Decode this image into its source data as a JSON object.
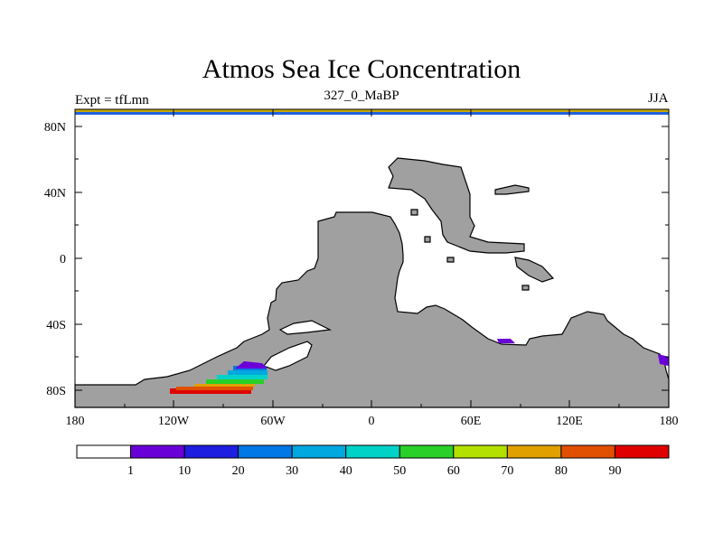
{
  "title": "Atmos Sea Ice Concentration",
  "subtitle": "327_0_MaBP",
  "experiment": "Expt = tfLmn",
  "season": "JJA",
  "map": {
    "projection": "cylindrical equidistant",
    "lon_range": [
      -180,
      180
    ],
    "lat_range": [
      -90,
      90
    ],
    "land_color": "#a0a0a0",
    "ocean_color": "#ffffff",
    "lat_labels": [
      "80N",
      "40N",
      "0",
      "40S",
      "80S"
    ],
    "lat_values": [
      80,
      40,
      0,
      -40,
      -80
    ],
    "lon_labels": [
      "180",
      "120W",
      "60W",
      "0",
      "60E",
      "120E",
      "180"
    ],
    "lon_values": [
      -180,
      -120,
      -60,
      0,
      60,
      120,
      180
    ]
  },
  "colorbar": {
    "colors": [
      "#ffffff",
      "#6a00d8",
      "#1e1ee0",
      "#0078e6",
      "#00a8e0",
      "#00d2c8",
      "#28d028",
      "#b4e000",
      "#e0a000",
      "#e05000",
      "#e00000"
    ],
    "labels": [
      "1",
      "10",
      "20",
      "30",
      "40",
      "50",
      "60",
      "70",
      "80",
      "90"
    ]
  }
}
